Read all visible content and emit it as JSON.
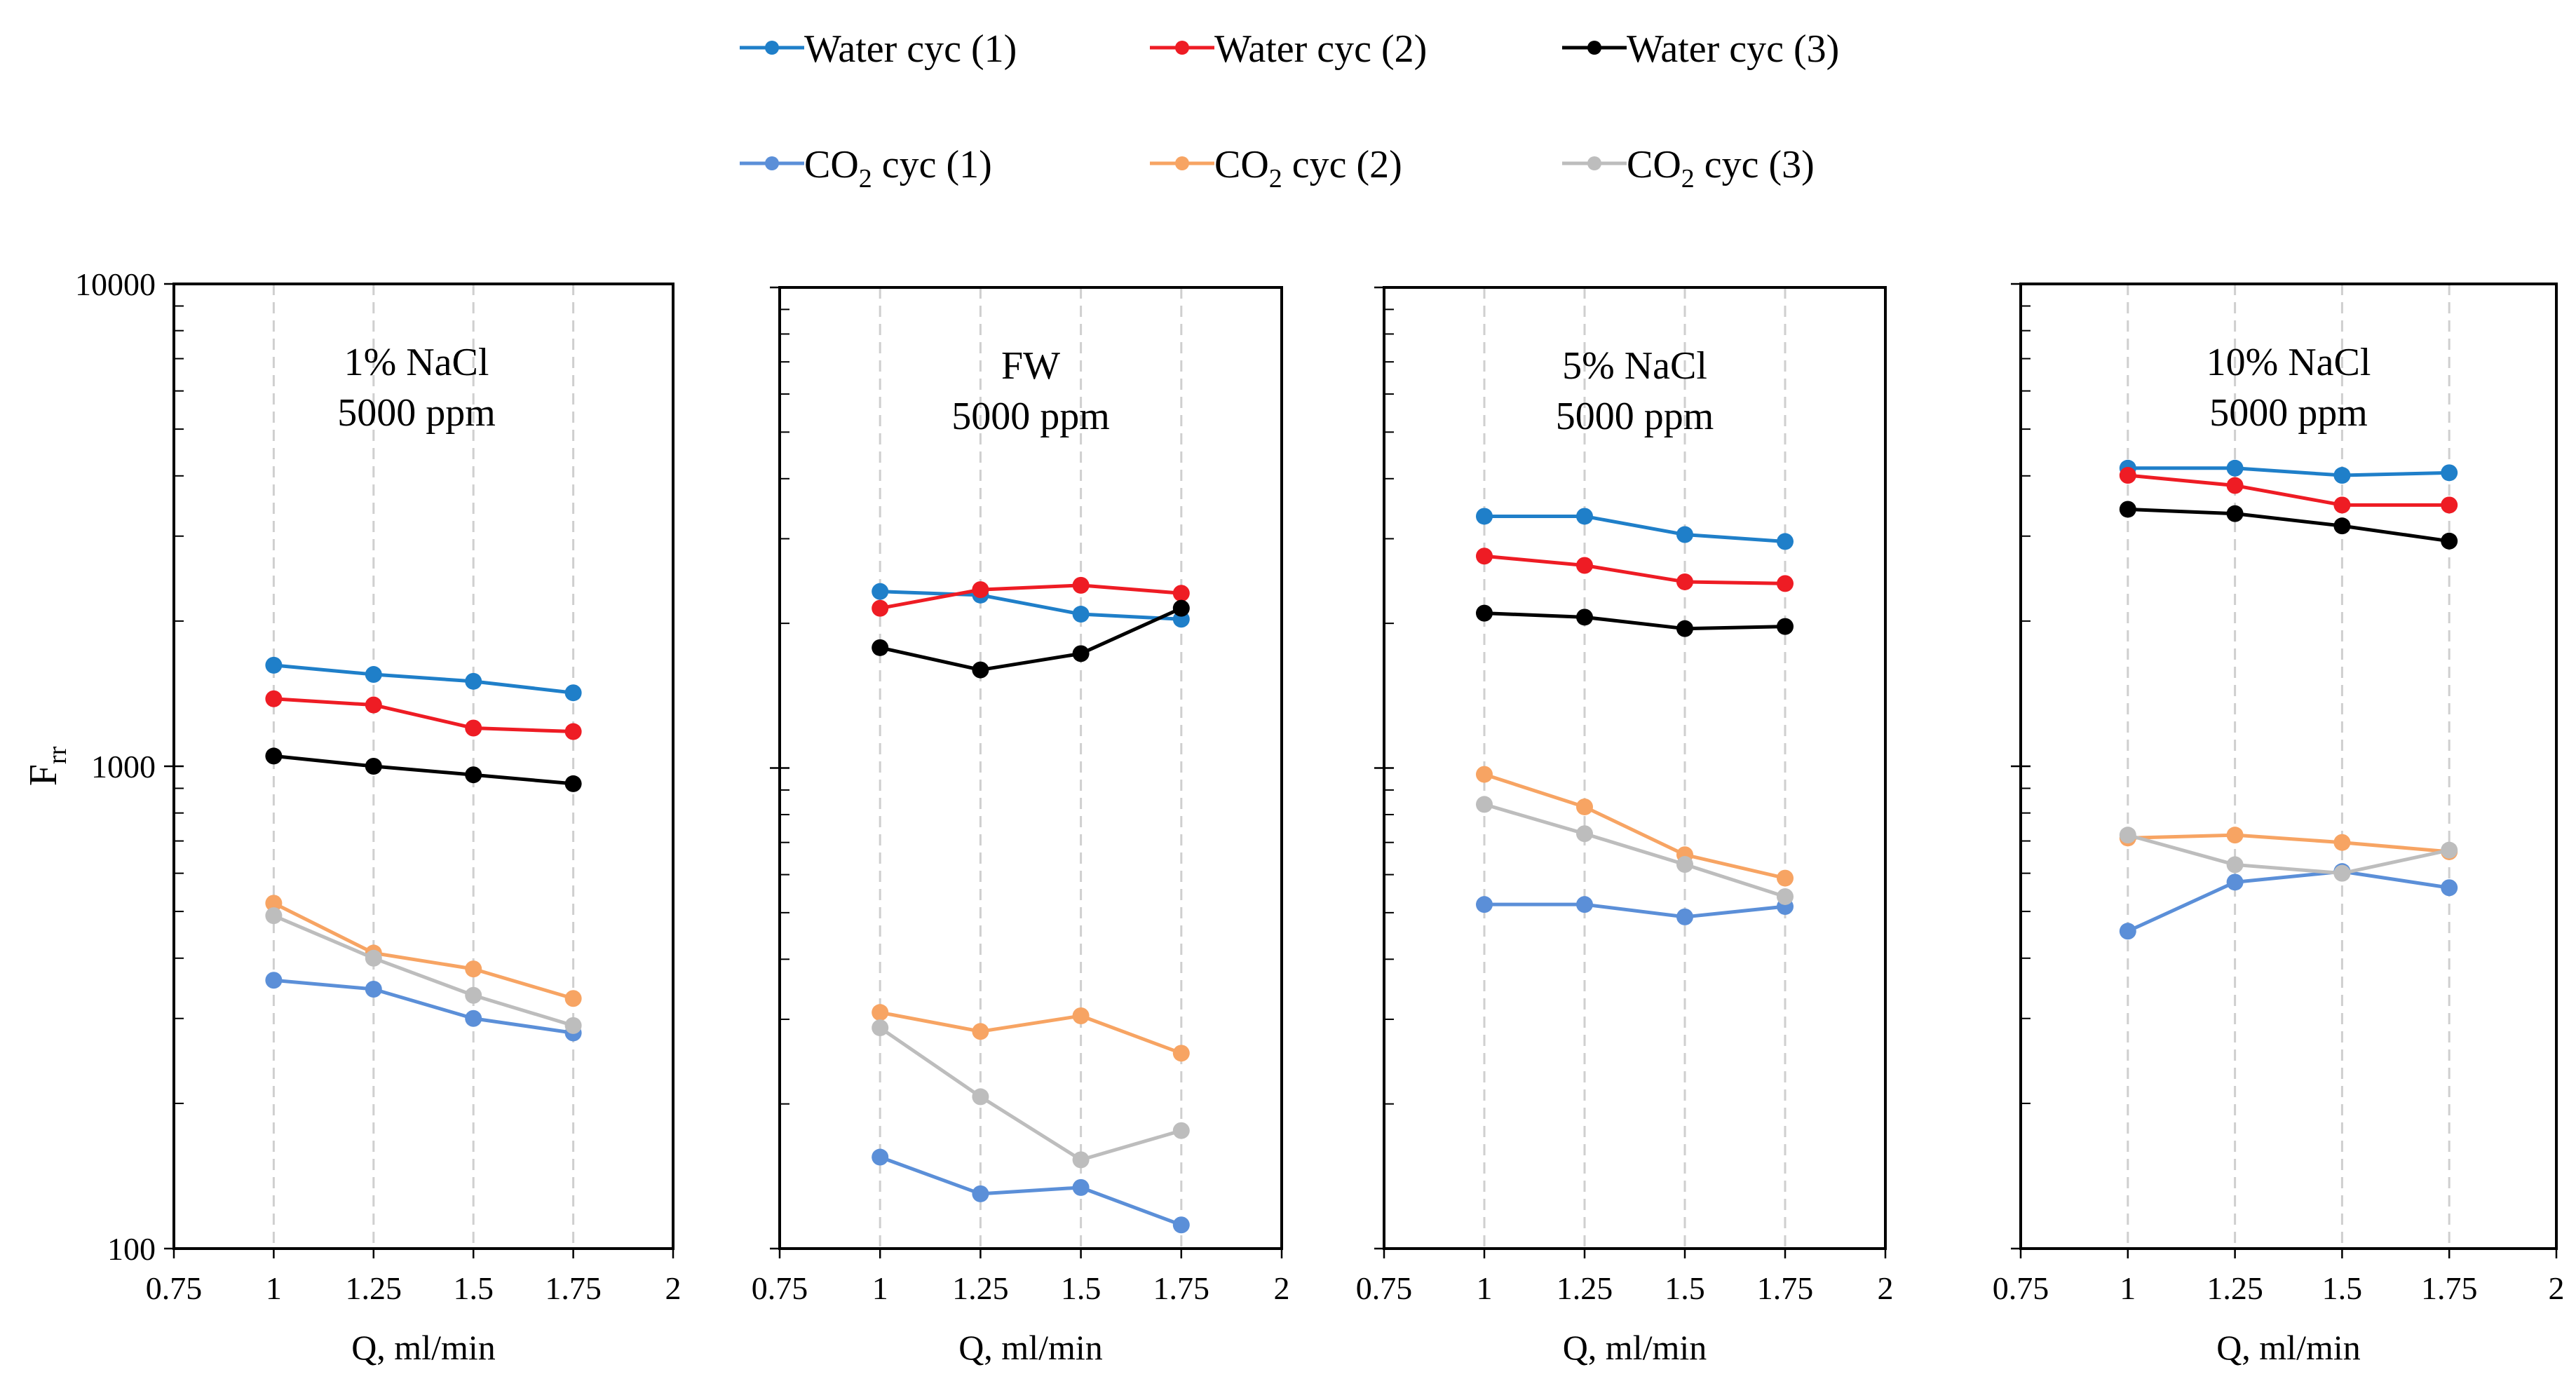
{
  "chart_data": {
    "type": "line",
    "yscale": "log",
    "ylabel": "F",
    "ylabel_sub": "rr",
    "ylim": [
      100,
      10000
    ],
    "y_ticks": [
      "10000",
      "1000",
      "100"
    ],
    "xlabel": "Q, ml/min",
    "xlim": [
      0.75,
      2
    ],
    "x_ticks": [
      "0.75",
      "1",
      "1.25",
      "1.5",
      "1.75",
      "2"
    ],
    "x": [
      1,
      1.25,
      1.5,
      1.75
    ],
    "legend": [
      {
        "prefix": "Water cyc (1)",
        "sub": "",
        "suffix": "",
        "color": "#1f7fc9"
      },
      {
        "prefix": "Water cyc (2)",
        "sub": "",
        "suffix": "",
        "color": "#ee1c24"
      },
      {
        "prefix": "Water cyc (3)",
        "sub": "",
        "suffix": "",
        "color": "#000000"
      },
      {
        "prefix": "CO",
        "sub": "2",
        "suffix": " cyc (1)",
        "color": "#5b8fd8"
      },
      {
        "prefix": "CO",
        "sub": "2",
        "suffix": " cyc (2)",
        "color": "#f7a463"
      },
      {
        "prefix": "CO",
        "sub": "2",
        "suffix": " cyc (3)",
        "color": "#bdbdbd"
      }
    ],
    "panels": [
      {
        "title": [
          "1% NaCl",
          "5000 ppm"
        ],
        "series": [
          {
            "name": "Water cyc (1)",
            "values": [
              1620,
              1550,
              1500,
              1420
            ]
          },
          {
            "name": "Water cyc (2)",
            "values": [
              1380,
              1340,
              1200,
              1180
            ]
          },
          {
            "name": "Water cyc (3)",
            "values": [
              1050,
              1000,
              960,
              920
            ]
          },
          {
            "name": "CO2 cyc (1)",
            "values": [
              360,
              345,
              300,
              280
            ]
          },
          {
            "name": "CO2 cyc (2)",
            "values": [
              520,
              410,
              380,
              330
            ]
          },
          {
            "name": "CO2 cyc (3)",
            "values": [
              490,
              400,
              335,
              290
            ]
          }
        ]
      },
      {
        "title": [
          "FW",
          "5000 ppm"
        ],
        "series": [
          {
            "name": "Water cyc (1)",
            "values": [
              2330,
              2290,
              2090,
              2040
            ]
          },
          {
            "name": "Water cyc (2)",
            "values": [
              2150,
              2350,
              2400,
              2310
            ]
          },
          {
            "name": "Water cyc (3)",
            "values": [
              1780,
              1600,
              1730,
              2150
            ]
          },
          {
            "name": "CO2 cyc (1)",
            "values": [
              155,
              130,
              134,
              112
            ]
          },
          {
            "name": "CO2 cyc (2)",
            "values": [
              310,
              283,
              305,
              255
            ]
          },
          {
            "name": "CO2 cyc (3)",
            "values": [
              288,
              207,
              153,
              176
            ]
          }
        ]
      },
      {
        "title": [
          "5% NaCl",
          "5000 ppm"
        ],
        "series": [
          {
            "name": "Water cyc (1)",
            "values": [
              3340,
              3340,
              3060,
              2960
            ]
          },
          {
            "name": "Water cyc (2)",
            "values": [
              2760,
              2640,
              2440,
              2420
            ]
          },
          {
            "name": "Water cyc (3)",
            "values": [
              2100,
              2060,
              1950,
              1970
            ]
          },
          {
            "name": "CO2 cyc (1)",
            "values": [
              520,
              520,
              490,
              515
            ]
          },
          {
            "name": "CO2 cyc (2)",
            "values": [
              970,
              830,
              660,
              590
            ]
          },
          {
            "name": "CO2 cyc (3)",
            "values": [
              840,
              730,
              630,
              540
            ]
          }
        ]
      },
      {
        "title": [
          "10% NaCl",
          "5000 ppm"
        ],
        "series": [
          {
            "name": "Water cyc (1)",
            "values": [
              4150,
              4150,
              4010,
              4060
            ]
          },
          {
            "name": "Water cyc (2)",
            "values": [
              4010,
              3820,
              3480,
              3480
            ]
          },
          {
            "name": "Water cyc (3)",
            "values": [
              3410,
              3340,
              3150,
              2930
            ]
          },
          {
            "name": "CO2 cyc (1)",
            "values": [
              455,
              575,
              605,
              560
            ]
          },
          {
            "name": "CO2 cyc (2)",
            "values": [
              710,
              720,
              695,
              665
            ]
          },
          {
            "name": "CO2 cyc (3)",
            "values": [
              720,
              625,
              600,
              670
            ]
          }
        ]
      }
    ]
  }
}
